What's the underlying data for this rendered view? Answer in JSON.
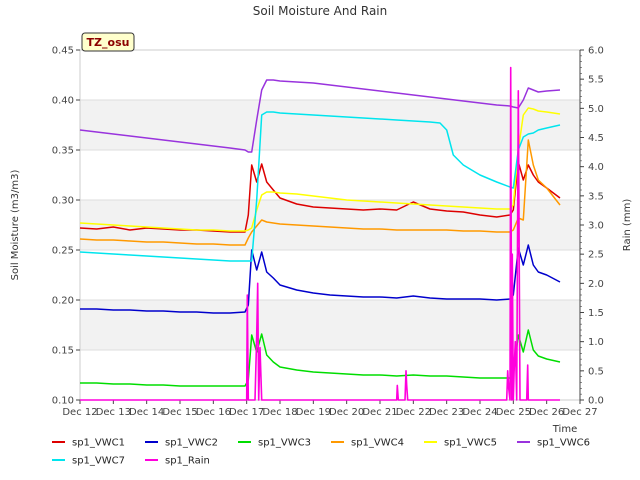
{
  "chart_data": {
    "type": "line",
    "title": "Soil Moisture And Rain",
    "site_label": "TZ_osu",
    "ylabel": "Soil Moisture (m3/m3)",
    "y2label": "Rain (mm)",
    "xlabel": "Time",
    "x_ticks": [
      "Dec 12",
      "Dec 13",
      "Dec 14",
      "Dec 15",
      "Dec 16",
      "Dec 17",
      "Dec 18",
      "Dec 19",
      "Dec 20",
      "Dec 21",
      "Dec 22",
      "Dec 23",
      "Dec 24",
      "Dec 25",
      "Dec 26",
      "Dec 27"
    ],
    "xlim": [
      0,
      15
    ],
    "ylim": [
      0.1,
      0.45
    ],
    "y_ticks": [
      "0.10",
      "0.15",
      "0.20",
      "0.25",
      "0.30",
      "0.35",
      "0.40",
      "0.45"
    ],
    "y2lim": [
      0.0,
      6.0
    ],
    "y2_ticks": [
      "0.0",
      "0.5",
      "1.0",
      "1.5",
      "2.0",
      "2.5",
      "3.0",
      "3.5",
      "4.0",
      "4.5",
      "5.0",
      "5.5",
      "6.0"
    ],
    "grid": "horizontal bands",
    "legend_position": "bottom",
    "series": [
      {
        "name": "sp1_VWC1",
        "color": "#dd0000",
        "axis": "left",
        "x": [
          0,
          0.5,
          1,
          1.5,
          2,
          2.5,
          3,
          3.5,
          4,
          4.5,
          4.95,
          5.05,
          5.15,
          5.3,
          5.45,
          5.6,
          5.8,
          6,
          6.5,
          7,
          7.5,
          8,
          8.5,
          9,
          9.5,
          10,
          10.5,
          11,
          11.5,
          12,
          12.5,
          12.9,
          13,
          13.15,
          13.3,
          13.45,
          13.6,
          13.75,
          14,
          14.4
        ],
        "y": [
          0.272,
          0.271,
          0.273,
          0.27,
          0.272,
          0.271,
          0.27,
          0.27,
          0.269,
          0.268,
          0.268,
          0.285,
          0.335,
          0.318,
          0.336,
          0.318,
          0.31,
          0.302,
          0.296,
          0.293,
          0.292,
          0.291,
          0.29,
          0.291,
          0.29,
          0.298,
          0.291,
          0.289,
          0.288,
          0.285,
          0.283,
          0.285,
          0.29,
          0.338,
          0.32,
          0.335,
          0.325,
          0.318,
          0.312,
          0.302
        ]
      },
      {
        "name": "sp1_VWC2",
        "color": "#0000cc",
        "axis": "left",
        "x": [
          0,
          0.5,
          1,
          1.5,
          2,
          2.5,
          3,
          3.5,
          4,
          4.5,
          4.95,
          5.05,
          5.15,
          5.3,
          5.45,
          5.6,
          5.8,
          6,
          6.5,
          7,
          7.5,
          8,
          8.5,
          9,
          9.5,
          10,
          10.5,
          11,
          11.5,
          12,
          12.5,
          12.9,
          13,
          13.15,
          13.3,
          13.45,
          13.6,
          13.75,
          14,
          14.4
        ],
        "y": [
          0.191,
          0.191,
          0.19,
          0.19,
          0.189,
          0.189,
          0.188,
          0.188,
          0.187,
          0.187,
          0.188,
          0.195,
          0.25,
          0.23,
          0.248,
          0.228,
          0.222,
          0.215,
          0.21,
          0.207,
          0.205,
          0.204,
          0.203,
          0.203,
          0.202,
          0.204,
          0.202,
          0.201,
          0.201,
          0.201,
          0.2,
          0.201,
          0.205,
          0.252,
          0.235,
          0.255,
          0.235,
          0.228,
          0.225,
          0.218
        ]
      },
      {
        "name": "sp1_VWC3",
        "color": "#00dd00",
        "axis": "left",
        "x": [
          0,
          0.5,
          1,
          1.5,
          2,
          2.5,
          3,
          3.5,
          4,
          4.5,
          4.95,
          5.05,
          5.15,
          5.3,
          5.45,
          5.6,
          5.8,
          6,
          6.5,
          7,
          7.5,
          8,
          8.5,
          9,
          9.5,
          10,
          10.5,
          11,
          11.5,
          12,
          12.5,
          12.9,
          13,
          13.15,
          13.3,
          13.45,
          13.6,
          13.75,
          14,
          14.4
        ],
        "y": [
          0.117,
          0.117,
          0.116,
          0.116,
          0.115,
          0.115,
          0.114,
          0.114,
          0.114,
          0.114,
          0.114,
          0.12,
          0.165,
          0.148,
          0.166,
          0.145,
          0.138,
          0.133,
          0.13,
          0.128,
          0.127,
          0.126,
          0.125,
          0.125,
          0.124,
          0.125,
          0.124,
          0.124,
          0.123,
          0.122,
          0.122,
          0.122,
          0.125,
          0.165,
          0.148,
          0.17,
          0.15,
          0.144,
          0.141,
          0.138
        ]
      },
      {
        "name": "sp1_VWC4",
        "color": "#ff9900",
        "axis": "left",
        "x": [
          0,
          0.5,
          1,
          1.5,
          2,
          2.5,
          3,
          3.5,
          4,
          4.5,
          4.95,
          5.05,
          5.15,
          5.3,
          5.45,
          5.6,
          5.8,
          6,
          6.5,
          7,
          7.5,
          8,
          8.5,
          9,
          9.5,
          10,
          10.5,
          11,
          11.5,
          12,
          12.5,
          12.9,
          13,
          13.15,
          13.3,
          13.45,
          13.6,
          13.75,
          14,
          14.4
        ],
        "y": [
          0.261,
          0.26,
          0.26,
          0.259,
          0.258,
          0.258,
          0.257,
          0.256,
          0.256,
          0.255,
          0.255,
          0.262,
          0.268,
          0.274,
          0.28,
          0.278,
          0.277,
          0.276,
          0.275,
          0.274,
          0.273,
          0.272,
          0.271,
          0.271,
          0.27,
          0.27,
          0.27,
          0.27,
          0.269,
          0.269,
          0.268,
          0.268,
          0.27,
          0.282,
          0.28,
          0.36,
          0.335,
          0.32,
          0.312,
          0.295
        ]
      },
      {
        "name": "sp1_VWC5",
        "color": "#ffff00",
        "axis": "left",
        "x": [
          0,
          0.5,
          1,
          1.5,
          2,
          2.5,
          3,
          3.5,
          4,
          4.5,
          4.95,
          5.05,
          5.15,
          5.3,
          5.45,
          5.6,
          5.8,
          6,
          6.5,
          7,
          7.5,
          8,
          8.5,
          9,
          9.5,
          10,
          10.5,
          11,
          11.5,
          12,
          12.5,
          12.9,
          13,
          13.15,
          13.3,
          13.45,
          13.6,
          13.75,
          14,
          14.4
        ],
        "y": [
          0.277,
          0.276,
          0.275,
          0.274,
          0.273,
          0.272,
          0.271,
          0.27,
          0.27,
          0.269,
          0.269,
          0.27,
          0.272,
          0.29,
          0.305,
          0.308,
          0.308,
          0.307,
          0.306,
          0.304,
          0.302,
          0.3,
          0.299,
          0.298,
          0.297,
          0.296,
          0.295,
          0.294,
          0.293,
          0.292,
          0.291,
          0.291,
          0.295,
          0.35,
          0.385,
          0.392,
          0.391,
          0.389,
          0.388,
          0.386
        ]
      },
      {
        "name": "sp1_VWC6",
        "color": "#9933dd",
        "axis": "left",
        "x": [
          0,
          0.5,
          1,
          1.5,
          2,
          2.5,
          3,
          3.5,
          4,
          4.5,
          4.95,
          5.05,
          5.15,
          5.3,
          5.45,
          5.6,
          5.8,
          6,
          6.5,
          7,
          7.5,
          8,
          8.5,
          9,
          9.5,
          10,
          10.5,
          11,
          11.5,
          12,
          12.5,
          12.9,
          13,
          13.15,
          13.3,
          13.45,
          13.6,
          13.75,
          14,
          14.4
        ],
        "y": [
          0.37,
          0.368,
          0.366,
          0.364,
          0.362,
          0.36,
          0.358,
          0.356,
          0.354,
          0.352,
          0.35,
          0.348,
          0.348,
          0.38,
          0.41,
          0.42,
          0.42,
          0.419,
          0.418,
          0.417,
          0.415,
          0.413,
          0.411,
          0.409,
          0.407,
          0.405,
          0.403,
          0.401,
          0.399,
          0.397,
          0.395,
          0.394,
          0.393,
          0.392,
          0.4,
          0.412,
          0.41,
          0.408,
          0.409,
          0.41
        ]
      },
      {
        "name": "sp1_VWC7",
        "color": "#00e5ee",
        "axis": "left",
        "x": [
          0,
          0.5,
          1,
          1.5,
          2,
          2.5,
          3,
          3.5,
          4,
          4.5,
          4.95,
          5.05,
          5.15,
          5.3,
          5.45,
          5.6,
          5.8,
          6,
          6.5,
          7,
          7.5,
          8,
          8.5,
          9,
          9.5,
          10,
          10.5,
          10.8,
          11,
          11.2,
          11.5,
          12,
          12.5,
          12.9,
          13,
          13.15,
          13.3,
          13.45,
          13.6,
          13.75,
          14,
          14.4
        ],
        "y": [
          0.248,
          0.247,
          0.246,
          0.245,
          0.244,
          0.243,
          0.242,
          0.241,
          0.24,
          0.239,
          0.239,
          0.239,
          0.239,
          0.3,
          0.385,
          0.388,
          0.388,
          0.387,
          0.386,
          0.385,
          0.384,
          0.383,
          0.382,
          0.381,
          0.38,
          0.379,
          0.378,
          0.377,
          0.37,
          0.345,
          0.335,
          0.325,
          0.318,
          0.313,
          0.312,
          0.35,
          0.363,
          0.366,
          0.367,
          0.37,
          0.372,
          0.375
        ]
      },
      {
        "name": "sp1_Rain",
        "color": "#ff00dd",
        "axis": "right",
        "x": [
          0,
          4.95,
          5.0,
          5.02,
          5.05,
          5.08,
          5.12,
          5.2,
          5.25,
          5.3,
          5.33,
          5.36,
          5.4,
          5.45,
          9,
          9.5,
          9.52,
          9.55,
          9.75,
          9.78,
          9.8,
          9.83,
          12.8,
          12.83,
          12.86,
          12.9,
          12.92,
          12.95,
          12.97,
          13.0,
          13.03,
          13.06,
          13.1,
          13.15,
          13.2,
          13.25,
          13.3,
          13.35,
          13.4,
          13.43,
          13.45,
          14.4
        ],
        "y": [
          0,
          0,
          0,
          1.8,
          0,
          0,
          0,
          0,
          0,
          1.1,
          2.0,
          0,
          0.9,
          0,
          0,
          0,
          0.25,
          0,
          0,
          0.5,
          0.25,
          0,
          0,
          0.5,
          0.2,
          0,
          5.7,
          0,
          2.5,
          0,
          0.6,
          1.0,
          0,
          5.3,
          0,
          0,
          0,
          0,
          0,
          0.6,
          0,
          0
        ]
      }
    ],
    "legend": [
      "sp1_VWC1",
      "sp1_VWC2",
      "sp1_VWC3",
      "sp1_VWC4",
      "sp1_VWC5",
      "sp1_VWC6",
      "sp1_VWC7",
      "sp1_Rain"
    ]
  }
}
